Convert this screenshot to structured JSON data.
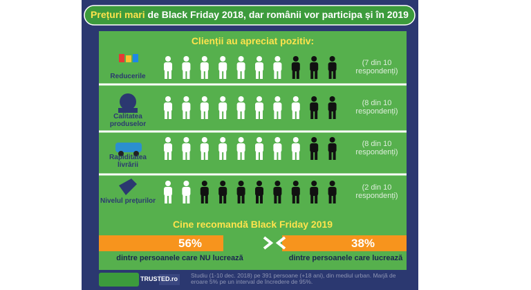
{
  "header": {
    "highlight": "Prețuri mari",
    "rest": "de Black Friday 2018, dar românii vor participa și în 2019"
  },
  "chart_data": [
    {
      "type": "pictogram",
      "title": "Clienții au apreciat pozitiv:",
      "categories": [
        "Reducerile",
        "Calitatea produselor",
        "Rapiditatea livrării",
        "Nivelul prețurilor"
      ],
      "values": [
        7,
        8,
        8,
        2
      ],
      "total": 10,
      "value_labels": [
        "(7 din 10 respondenți)",
        "(8 din 10 respondenți)",
        "(8 din 10 respondenți)",
        "(2 din 10 respondenți)"
      ],
      "colors": {
        "positive": "#ffffff",
        "negative": "#111111"
      }
    },
    {
      "type": "comparison",
      "title": "Cine recomandă Black Friday 2019",
      "categories": [
        "dintre persoanele care NU lucrează",
        "dintre persoanele care lucrează"
      ],
      "values": [
        56,
        38
      ],
      "value_labels": [
        "56%",
        "38%"
      ],
      "color": "#f7941d"
    }
  ],
  "footer": {
    "logo": "TRUSTED.ro",
    "note": "Studiu (1-10 dec. 2018) pe 391 persoane (+18 ani), din mediul urban. Marjă de eroare 5% pe un interval de încredere de 95%."
  }
}
